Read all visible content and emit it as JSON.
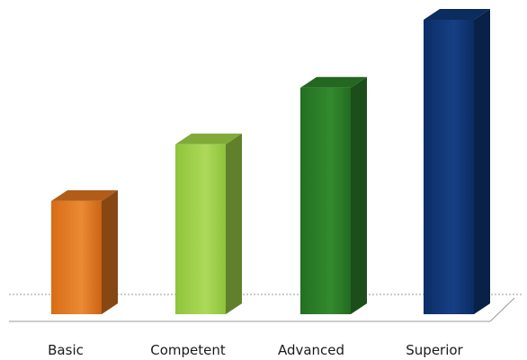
{
  "chart_data": {
    "type": "bar",
    "style": "3d-column",
    "categories": [
      "Basic",
      "Competent",
      "Advanced",
      "Superior"
    ],
    "values": [
      1.0,
      1.5,
      2.0,
      2.6
    ],
    "colors": [
      "#d8721f",
      "#9ccf45",
      "#2b7d28",
      "#0f3473"
    ],
    "title": "",
    "xlabel": "",
    "ylabel": "",
    "ylim": [
      0,
      2.6
    ],
    "grid": false,
    "legend": "none"
  }
}
